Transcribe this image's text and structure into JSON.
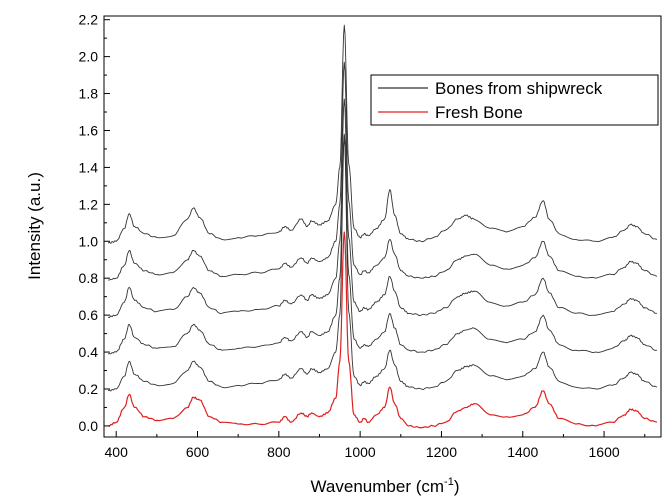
{
  "chart_data": {
    "type": "line",
    "xlabel": "Wavenumber (cm",
    "xlabel_sup": "-1",
    "xlabel_tail": ")",
    "ylabel": "Intensity (a.u.)",
    "xlim": [
      370,
      1740
    ],
    "ylim": [
      -0.06,
      2.22
    ],
    "x_ticks": [
      400,
      600,
      800,
      1000,
      1200,
      1400,
      1600
    ],
    "x_tick_labels": [
      "400",
      "600",
      "800",
      "1000",
      "1200",
      "1400",
      "1600"
    ],
    "y_ticks": [
      0.0,
      0.2,
      0.4,
      0.6,
      0.8,
      1.0,
      1.2,
      1.4,
      1.6,
      1.8,
      2.0,
      2.2
    ],
    "y_tick_labels": [
      "0.0",
      "0.2",
      "0.4",
      "0.6",
      "0.8",
      "1.0",
      "1.2",
      "1.4",
      "1.6",
      "1.8",
      "2.0",
      "2.2"
    ],
    "legend": [
      {
        "label": "Bones from shipwreck",
        "color": "#333333"
      },
      {
        "label": "Fresh Bone",
        "color": "#e02020"
      }
    ],
    "legend_position": "top-right",
    "grid": false,
    "x": [
      380,
      400,
      420,
      432,
      445,
      470,
      500,
      540,
      575,
      590,
      605,
      630,
      660,
      700,
      750,
      800,
      815,
      830,
      855,
      870,
      880,
      900,
      920,
      940,
      950,
      961,
      972,
      985,
      1000,
      1010,
      1020,
      1040,
      1060,
      1073,
      1085,
      1100,
      1120,
      1150,
      1180,
      1210,
      1240,
      1260,
      1280,
      1320,
      1360,
      1400,
      1430,
      1450,
      1465,
      1490,
      1530,
      1580,
      1620,
      1650,
      1665,
      1680,
      1700,
      1730
    ],
    "series": [
      {
        "name": "Fresh Bone",
        "color": "#e02020",
        "values": [
          0.0,
          0.02,
          0.1,
          0.17,
          0.1,
          0.05,
          0.03,
          0.04,
          0.1,
          0.155,
          0.14,
          0.05,
          0.02,
          0.01,
          0.01,
          0.02,
          0.05,
          0.02,
          0.07,
          0.05,
          0.07,
          0.05,
          0.07,
          0.15,
          0.35,
          1.05,
          0.35,
          0.06,
          0.02,
          0.04,
          0.02,
          0.06,
          0.1,
          0.21,
          0.12,
          0.04,
          0.0,
          -0.01,
          0.0,
          0.02,
          0.08,
          0.1,
          0.12,
          0.06,
          0.05,
          0.06,
          0.1,
          0.19,
          0.12,
          0.04,
          0.01,
          0.0,
          0.02,
          0.06,
          0.09,
          0.08,
          0.04,
          0.02
        ]
      },
      {
        "name": "",
        "color": "#333333",
        "values": [
          0.19,
          0.2,
          0.27,
          0.35,
          0.28,
          0.24,
          0.22,
          0.23,
          0.3,
          0.35,
          0.32,
          0.24,
          0.21,
          0.22,
          0.23,
          0.25,
          0.28,
          0.26,
          0.31,
          0.28,
          0.31,
          0.29,
          0.31,
          0.4,
          0.6,
          1.57,
          0.62,
          0.27,
          0.22,
          0.24,
          0.23,
          0.27,
          0.31,
          0.41,
          0.33,
          0.24,
          0.21,
          0.2,
          0.21,
          0.24,
          0.3,
          0.32,
          0.33,
          0.27,
          0.25,
          0.27,
          0.31,
          0.4,
          0.32,
          0.24,
          0.21,
          0.2,
          0.22,
          0.26,
          0.29,
          0.28,
          0.24,
          0.21
        ]
      },
      {
        "name": "",
        "color": "#333333",
        "values": [
          0.39,
          0.4,
          0.47,
          0.55,
          0.48,
          0.44,
          0.42,
          0.43,
          0.5,
          0.55,
          0.52,
          0.44,
          0.41,
          0.42,
          0.43,
          0.45,
          0.48,
          0.46,
          0.51,
          0.48,
          0.51,
          0.49,
          0.51,
          0.6,
          0.8,
          1.58,
          0.82,
          0.47,
          0.42,
          0.44,
          0.43,
          0.47,
          0.51,
          0.61,
          0.53,
          0.44,
          0.41,
          0.4,
          0.41,
          0.44,
          0.5,
          0.52,
          0.53,
          0.47,
          0.45,
          0.47,
          0.51,
          0.6,
          0.52,
          0.44,
          0.41,
          0.4,
          0.42,
          0.46,
          0.49,
          0.48,
          0.44,
          0.41
        ]
      },
      {
        "name": "",
        "color": "#333333",
        "values": [
          0.59,
          0.6,
          0.67,
          0.75,
          0.68,
          0.64,
          0.62,
          0.63,
          0.7,
          0.75,
          0.72,
          0.64,
          0.61,
          0.62,
          0.63,
          0.65,
          0.68,
          0.66,
          0.71,
          0.68,
          0.71,
          0.69,
          0.71,
          0.8,
          1.0,
          1.77,
          1.02,
          0.67,
          0.62,
          0.64,
          0.63,
          0.67,
          0.71,
          0.81,
          0.73,
          0.64,
          0.61,
          0.6,
          0.61,
          0.64,
          0.7,
          0.72,
          0.73,
          0.67,
          0.65,
          0.67,
          0.71,
          0.8,
          0.72,
          0.64,
          0.61,
          0.6,
          0.62,
          0.66,
          0.69,
          0.68,
          0.64,
          0.61
        ]
      },
      {
        "name": "",
        "color": "#333333",
        "values": [
          0.79,
          0.8,
          0.87,
          0.95,
          0.88,
          0.84,
          0.82,
          0.83,
          0.9,
          0.95,
          0.92,
          0.84,
          0.81,
          0.82,
          0.83,
          0.85,
          0.88,
          0.86,
          0.91,
          0.88,
          0.91,
          0.89,
          0.91,
          1.0,
          1.2,
          1.97,
          1.22,
          0.87,
          0.82,
          0.84,
          0.83,
          0.87,
          0.91,
          1.01,
          0.93,
          0.84,
          0.81,
          0.8,
          0.81,
          0.84,
          0.9,
          0.92,
          0.93,
          0.87,
          0.85,
          0.87,
          0.91,
          1.0,
          0.92,
          0.84,
          0.81,
          0.8,
          0.82,
          0.86,
          0.89,
          0.88,
          0.84,
          0.81
        ]
      },
      {
        "name": "Bones from shipwreck",
        "color": "#333333",
        "values": [
          0.99,
          1.0,
          1.07,
          1.15,
          1.08,
          1.04,
          1.02,
          1.03,
          1.12,
          1.18,
          1.13,
          1.04,
          1.01,
          1.02,
          1.03,
          1.05,
          1.08,
          1.06,
          1.12,
          1.08,
          1.11,
          1.09,
          1.11,
          1.2,
          1.4,
          2.17,
          1.42,
          1.07,
          1.02,
          1.04,
          1.03,
          1.07,
          1.12,
          1.28,
          1.14,
          1.04,
          1.01,
          1.0,
          1.02,
          1.06,
          1.12,
          1.14,
          1.12,
          1.07,
          1.05,
          1.08,
          1.13,
          1.22,
          1.12,
          1.04,
          1.01,
          1.0,
          1.02,
          1.06,
          1.09,
          1.08,
          1.04,
          1.01
        ]
      }
    ]
  }
}
